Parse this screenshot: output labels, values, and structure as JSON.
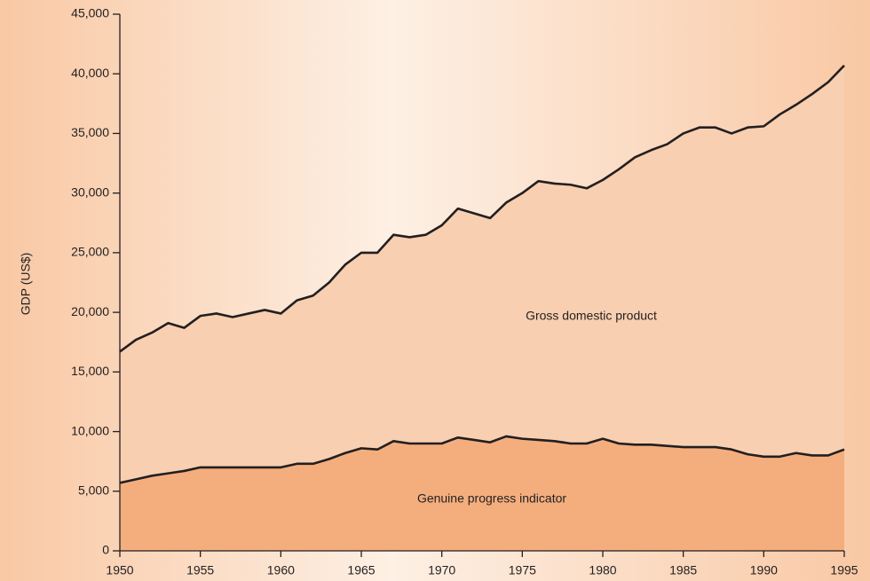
{
  "chart_data": {
    "type": "area",
    "ylabel": "GDP (US$)",
    "x": [
      1950,
      1951,
      1952,
      1953,
      1954,
      1955,
      1956,
      1957,
      1958,
      1959,
      1960,
      1961,
      1962,
      1963,
      1964,
      1965,
      1966,
      1967,
      1968,
      1969,
      1970,
      1971,
      1972,
      1973,
      1974,
      1975,
      1976,
      1977,
      1978,
      1979,
      1980,
      1981,
      1982,
      1983,
      1984,
      1985,
      1986,
      1987,
      1988,
      1989,
      1990,
      1991,
      1992,
      1993,
      1994,
      1995
    ],
    "series": [
      {
        "name": "Gross domestic product",
        "color": "#f8cfb0",
        "line_color": "#231f20",
        "values": [
          16700,
          17700,
          18300,
          19100,
          18700,
          19700,
          19900,
          19600,
          19900,
          20200,
          19900,
          21000,
          21400,
          22500,
          24000,
          25000,
          25000,
          26500,
          26300,
          26500,
          27300,
          28700,
          28300,
          27900,
          29200,
          30000,
          31000,
          30800,
          30700,
          30400,
          31100,
          32000,
          33000,
          33600,
          34100,
          35000,
          35500,
          35500,
          35000,
          35500,
          35600,
          36600,
          37400,
          38300,
          39300,
          40700
        ]
      },
      {
        "name": "Genuine progress indicator",
        "color": "#f4ae7e",
        "line_color": "#231f20",
        "values": [
          5700,
          6000,
          6300,
          6500,
          6700,
          7000,
          7000,
          7000,
          7000,
          7000,
          7000,
          7300,
          7300,
          7700,
          8200,
          8600,
          8500,
          9200,
          9000,
          9000,
          9000,
          9500,
          9300,
          9100,
          9600,
          9400,
          9300,
          9200,
          9000,
          9000,
          9400,
          9000,
          8900,
          8900,
          8800,
          8700,
          8700,
          8700,
          8500,
          8100,
          7900,
          7900,
          8200,
          8000,
          8000,
          8500
        ]
      }
    ],
    "xlim": [
      1950,
      1995
    ],
    "xticks": [
      1950,
      1955,
      1960,
      1965,
      1970,
      1975,
      1980,
      1985,
      1990,
      1995
    ],
    "ylim": [
      0,
      45000
    ],
    "yticks": [
      0,
      {
        "value": 5000,
        "label": "5,000"
      },
      {
        "value": 10000,
        "label": "10,000"
      },
      {
        "value": 15000,
        "label": "15,000"
      },
      {
        "value": 20000,
        "label": "20,000"
      },
      {
        "value": 25000,
        "label": "25,000"
      },
      {
        "value": 30000,
        "label": "30,000"
      },
      {
        "value": 35000,
        "label": "35,000"
      },
      {
        "value": 40000,
        "label": "40,000"
      },
      {
        "value": 45000,
        "label": "45,000"
      }
    ],
    "grid": false
  }
}
